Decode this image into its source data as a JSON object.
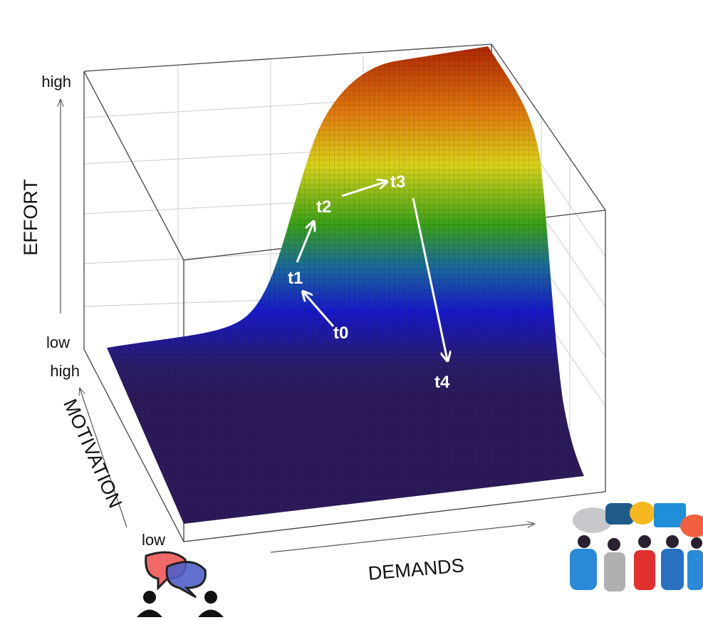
{
  "axes": {
    "effort": {
      "label": "EFFORT",
      "high": "high",
      "low": "low"
    },
    "motivation": {
      "label": "MOTIVATION",
      "high": "high",
      "low": "low"
    },
    "demands": {
      "label": "DEMANDS"
    }
  },
  "trajectory": {
    "points": [
      {
        "label": "t0"
      },
      {
        "label": "t1"
      },
      {
        "label": "t2"
      },
      {
        "label": "t3"
      },
      {
        "label": "t4"
      }
    ]
  }
}
